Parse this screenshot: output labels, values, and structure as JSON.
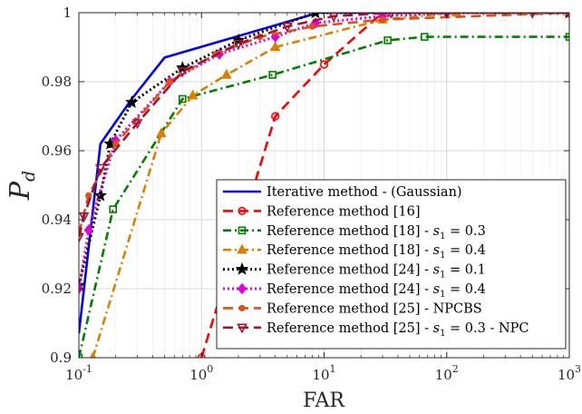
{
  "chart_data": {
    "type": "line",
    "xlabel": "FAR",
    "ylabel": {
      "main": "P",
      "sub": "d"
    },
    "xscale": "log",
    "xlim": [
      0.1,
      1000
    ],
    "ylim": [
      0.9,
      1.0
    ],
    "grid": true,
    "legend_position": "bottom-right",
    "x_ticks": [
      {
        "value": 0.1,
        "base": "10",
        "exp": "-1"
      },
      {
        "value": 1,
        "base": "10",
        "exp": "0"
      },
      {
        "value": 10,
        "base": "10",
        "exp": "1"
      },
      {
        "value": 100,
        "base": "10",
        "exp": "2"
      },
      {
        "value": 1000,
        "base": "10",
        "exp": "3"
      }
    ],
    "y_ticks": [
      {
        "value": 0.9,
        "label": "0.9"
      },
      {
        "value": 0.92,
        "label": "0.92"
      },
      {
        "value": 0.94,
        "label": "0.94"
      },
      {
        "value": 0.96,
        "label": "0.96"
      },
      {
        "value": 0.98,
        "label": "0.98"
      },
      {
        "value": 1.0,
        "label": "1"
      }
    ],
    "series": [
      {
        "name": "Iterative method - (Gaussian)",
        "color": "#0000ff",
        "dash": "solid",
        "marker": "none",
        "x": [
          0.1,
          0.15,
          0.27,
          0.5,
          9,
          1000
        ],
        "y": [
          0.907,
          0.962,
          0.975,
          0.987,
          1.0,
          1.0
        ]
      },
      {
        "name": "Reference method [16]",
        "color": "#ff0000",
        "dash": "dashed",
        "marker": "circle",
        "x": [
          1,
          4,
          10,
          30,
          1000
        ],
        "y": [
          0.9,
          0.97,
          0.985,
          1.0,
          1.0
        ]
      },
      {
        "name": "Reference method [18] - s_1 = 0.3",
        "color": "#008000",
        "dash": "dashdot",
        "marker": "square",
        "x": [
          0.1,
          0.19,
          0.7,
          3.8,
          33,
          66,
          1000
        ],
        "y": [
          0.9,
          0.943,
          0.975,
          0.982,
          0.992,
          0.993,
          0.993
        ]
      },
      {
        "name": "Reference method [18] - s_1 = 0.4",
        "color": "#d98000",
        "dash": "dashdot",
        "marker": "triangle",
        "x": [
          0.13,
          0.47,
          0.85,
          1.6,
          4,
          30,
          120,
          1000
        ],
        "y": [
          0.9,
          0.965,
          0.976,
          0.982,
          0.99,
          0.998,
          1.0,
          1.0
        ]
      },
      {
        "name": "Reference method [24] - s_1 = 0.1",
        "color": "#000000",
        "dash": "dotted",
        "marker": "star",
        "x": [
          0.1,
          0.15,
          0.18,
          0.27,
          0.7,
          2,
          8.5,
          1000
        ],
        "y": [
          0.921,
          0.947,
          0.962,
          0.974,
          0.984,
          0.992,
          1.0,
          1.0
        ]
      },
      {
        "name": "Reference method [24] - s_1 = 0.4",
        "color": "#e000e0",
        "dash": "dotted",
        "marker": "diamond",
        "x": [
          0.1,
          0.12,
          0.2,
          0.55,
          1.4,
          4,
          8.5,
          30,
          100,
          1000
        ],
        "y": [
          0.92,
          0.937,
          0.963,
          0.98,
          0.988,
          0.993,
          0.997,
          0.999,
          1.0,
          1.0
        ]
      },
      {
        "name": "Reference method [25] - NPCBS",
        "color": "#d95319",
        "dash": "dashed",
        "marker": "dot",
        "x": [
          0.1,
          0.12,
          0.2,
          0.55,
          1.3,
          3,
          8,
          30,
          1000
        ],
        "y": [
          0.936,
          0.947,
          0.962,
          0.98,
          0.988,
          0.993,
          0.996,
          0.998,
          1.0
        ]
      },
      {
        "name": "Reference method [25] - s_1 = 0.3 - NPC",
        "color": "#a2142f",
        "dash": "dashed",
        "marker": "triangle-down",
        "x": [
          0.1,
          0.11,
          0.15,
          0.3,
          0.7,
          2,
          5,
          12,
          35,
          100,
          500,
          1000
        ],
        "y": [
          0.935,
          0.941,
          0.955,
          0.968,
          0.983,
          0.991,
          0.996,
          0.999,
          1.0,
          1.0,
          1.0,
          1.0
        ]
      }
    ],
    "legend": [
      {
        "pre": "Iterative method - (Gaussian)",
        "italic": "",
        "sub": "",
        "post": ""
      },
      {
        "pre": "Reference method [16]",
        "italic": "",
        "sub": "",
        "post": ""
      },
      {
        "pre": "Reference method [18] - ",
        "italic": "s",
        "sub": "1",
        "post": " = 0.3"
      },
      {
        "pre": "Reference method [18] - ",
        "italic": "s",
        "sub": "1",
        "post": " = 0.4"
      },
      {
        "pre": "Reference method [24] - ",
        "italic": "s",
        "sub": "1",
        "post": " = 0.1"
      },
      {
        "pre": "Reference method [24] - ",
        "italic": "s",
        "sub": "1",
        "post": " = 0.4"
      },
      {
        "pre": "Reference method [25] - NPCBS",
        "italic": "",
        "sub": "",
        "post": ""
      },
      {
        "pre": "Reference method [25] - ",
        "italic": "s",
        "sub": "1",
        "post": " = 0.3 - NPC"
      }
    ]
  }
}
